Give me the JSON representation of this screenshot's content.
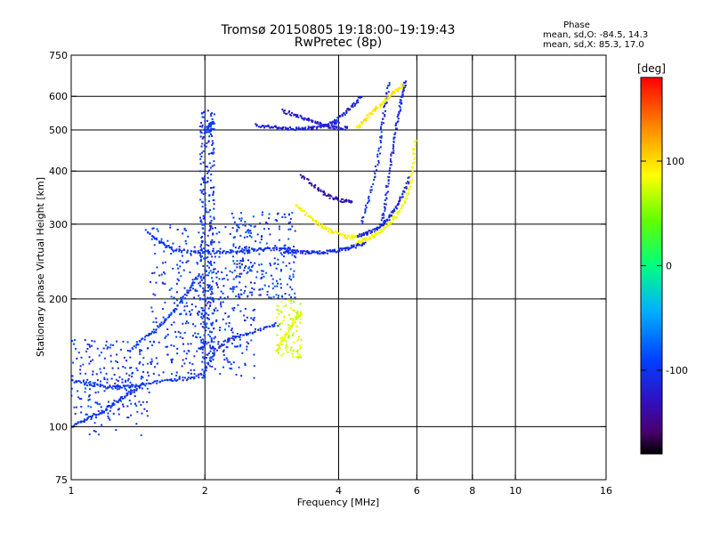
{
  "header": {
    "title_line1": "Tromsø 20150805 19:18:00–19:19:43",
    "title_line2": "RwPretec (8p)",
    "phase_heading": "Phase",
    "phase_stats_o": "mean, sd,O: -84.5, 14.3",
    "phase_stats_x": "mean, sd,X: 85.3, 17.0"
  },
  "colorbar": {
    "unit": "[deg]",
    "ticks": [
      {
        "value": 100,
        "label": "100"
      },
      {
        "value": 0,
        "label": "0"
      },
      {
        "value": -100,
        "label": "-100"
      }
    ],
    "range": [
      -180,
      180
    ]
  },
  "chart_data": {
    "type": "scatter",
    "title": "Tromsø 20150805 19:18:00–19:19:43",
    "subtitle": "RwPretec (8p)",
    "xlabel": "Frequency [MHz]",
    "ylabel": "Stationary phase Virtual Height [km]",
    "xscale": "log",
    "yscale": "log",
    "xlim": [
      1,
      16
    ],
    "ylim": [
      75,
      750
    ],
    "xticks": [
      {
        "value": 1,
        "label": "1"
      },
      {
        "value": 2,
        "label": "2"
      },
      {
        "value": 4,
        "label": "4"
      },
      {
        "value": 6,
        "label": "6"
      },
      {
        "value": 8,
        "label": "8"
      },
      {
        "value": 10,
        "label": "10"
      },
      {
        "value": 16,
        "label": "16"
      }
    ],
    "yticks": [
      {
        "value": 75,
        "label": "75"
      },
      {
        "value": 100,
        "label": "100"
      },
      {
        "value": 200,
        "label": "200"
      },
      {
        "value": 300,
        "label": "300"
      },
      {
        "value": 400,
        "label": "400"
      },
      {
        "value": 500,
        "label": "500"
      },
      {
        "value": 600,
        "label": "600"
      },
      {
        "value": 750,
        "label": "750"
      }
    ],
    "grid_x": [
      1,
      2,
      4,
      6,
      8,
      10
    ],
    "grid_y": [
      100,
      200,
      300,
      400,
      500,
      600
    ],
    "color_variable": "Phase [deg]",
    "series": [
      {
        "traces": [
          {
            "x": [
              1.0,
              1.1,
              1.2,
              1.3,
              1.4,
              1.55,
              1.7,
              1.85,
              2.0
            ],
            "y": [
              128,
              126,
              124,
              124,
              125,
              127,
              129,
              130,
              133
            ],
            "phase": -100
          },
          {
            "x": [
              2.0,
              2.1,
              2.25,
              2.45,
              2.7,
              2.95
            ],
            "y": [
              135,
              150,
              160,
              165,
              170,
              175
            ],
            "phase": -105
          },
          {
            "x": [
              1.0,
              1.06,
              1.12,
              1.2,
              1.28,
              1.36,
              1.45
            ],
            "y": [
              100,
              103,
              106,
              110,
              115,
              120,
              126
            ],
            "phase": -100
          },
          {
            "x": [
              1.35,
              1.45,
              1.55,
              1.65,
              1.75,
              1.85,
              1.95
            ],
            "y": [
              150,
              160,
              170,
              180,
              195,
              210,
              230
            ],
            "phase": -95
          },
          {
            "x": [
              1.48,
              1.58,
              1.7,
              1.85,
              2.0,
              2.2,
              2.4,
              2.6,
              2.8,
              3.0,
              3.2
            ],
            "y": [
              290,
              272,
              262,
              258,
              258,
              258,
              260,
              261,
              262,
              262,
              262
            ],
            "phase": -100
          },
          {
            "x": [
              3.0,
              3.2,
              3.4,
              3.6,
              3.8,
              4.0,
              4.2,
              4.4,
              4.6
            ],
            "y": [
              258,
              258,
              257,
              257,
              258,
              260,
              263,
              267,
              272
            ],
            "phase": -110
          },
          {
            "x": [
              2.0,
              2.05,
              2.1
            ],
            "y": [
              500,
              510,
              520
            ],
            "phase": -100
          },
          {
            "x": [
              2.6,
              2.8,
              3.0,
              3.2,
              3.4,
              3.6,
              3.8,
              4.0
            ],
            "y": [
              512,
              508,
              505,
              503,
              504,
              507,
              515,
              525
            ],
            "phase": -115
          },
          {
            "x": [
              3.0,
              3.2,
              3.4,
              3.6,
              3.8,
              4.0,
              4.2
            ],
            "y": [
              555,
              540,
              530,
              520,
              510,
              505,
              505
            ],
            "phase": -120
          },
          {
            "x": [
              3.9,
              4.1,
              4.3,
              4.5
            ],
            "y": [
              520,
              545,
              570,
              600
            ],
            "phase": -110
          },
          {
            "x": [
              3.3,
              3.5,
              3.7,
              3.9,
              4.1,
              4.3
            ],
            "y": [
              390,
              370,
              355,
              345,
              340,
              340
            ],
            "phase": -135
          },
          {
            "x": [
              4.4,
              4.6,
              4.8,
              5.0,
              5.2,
              5.4,
              5.6,
              5.8
            ],
            "y": [
              280,
              285,
              290,
              298,
              310,
              330,
              355,
              390
            ],
            "phase": -110
          },
          {
            "x": [
              4.5,
              4.7,
              4.9,
              5.0,
              5.1,
              5.2
            ],
            "y": [
              300,
              350,
              420,
              500,
              580,
              650
            ],
            "phase": -105
          },
          {
            "x": [
              5.0,
              5.1,
              5.2,
              5.3,
              5.4,
              5.5,
              5.6,
              5.65
            ],
            "y": [
              300,
              340,
              390,
              450,
              510,
              570,
              620,
              650
            ],
            "phase": -110
          },
          {
            "x": [
              3.2,
              3.4,
              3.6,
              3.8,
              4.0,
              4.2,
              4.4
            ],
            "y": [
              335,
              315,
              300,
              290,
              284,
              280,
              280
            ],
            "phase": 90
          },
          {
            "x": [
              4.4,
              4.6,
              4.8,
              5.0,
              5.2,
              5.4,
              5.6,
              5.8,
              5.9,
              5.95
            ],
            "y": [
              272,
              276,
              282,
              290,
              300,
              315,
              335,
              370,
              420,
              480
            ],
            "phase": 85
          },
          {
            "x": [
              4.4,
              4.6,
              4.8,
              5.0,
              5.2,
              5.4,
              5.6
            ],
            "y": [
              505,
              530,
              555,
              575,
              600,
              620,
              640
            ],
            "phase": 95
          },
          {
            "x": [
              2.9,
              3.0,
              3.1,
              3.2,
              3.3
            ],
            "y": [
              150,
              160,
              170,
              180,
              185
            ],
            "phase": 80
          }
        ]
      }
    ]
  }
}
